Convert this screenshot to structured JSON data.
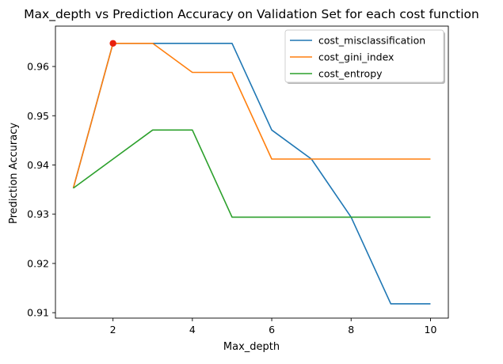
{
  "chart_data": {
    "type": "line",
    "title": "Max_depth vs Prediction Accuracy on Validation Set for each cost function",
    "xlabel": "Max_depth",
    "ylabel": "Prediction Accuracy",
    "x": [
      1,
      2,
      3,
      4,
      5,
      6,
      7,
      8,
      9,
      10
    ],
    "xlim": [
      0.55,
      10.45
    ],
    "ylim": [
      0.9089,
      0.9682
    ],
    "xticks": [
      2,
      4,
      6,
      8,
      10
    ],
    "xtick_labels": [
      "2",
      "4",
      "6",
      "8",
      "10"
    ],
    "yticks": [
      0.91,
      0.92,
      0.93,
      0.94,
      0.95,
      0.96
    ],
    "ytick_labels": [
      "0.91",
      "0.92",
      "0.93",
      "0.94",
      "0.95",
      "0.96"
    ],
    "grid": false,
    "legend_position": "top-right",
    "series": [
      {
        "name": "cost_misclassification",
        "color": "#1f77b4",
        "values": [
          0.9353,
          0.9647,
          0.9647,
          0.9647,
          0.9647,
          0.9471,
          0.9412,
          0.9294,
          0.9118,
          0.9118
        ]
      },
      {
        "name": "cost_gini_index",
        "color": "#ff7f0e",
        "values": [
          0.9353,
          0.9647,
          0.9647,
          0.9588,
          0.9588,
          0.9412,
          0.9412,
          0.9412,
          0.9412,
          0.9412
        ]
      },
      {
        "name": "cost_entropy",
        "color": "#2ca02c",
        "values": [
          0.9353,
          0.9412,
          0.9471,
          0.9471,
          0.9294,
          0.9294,
          0.9294,
          0.9294,
          0.9294,
          0.9294
        ]
      }
    ],
    "highlight_point": {
      "x": 2,
      "y": 0.9647,
      "color": "#e8200c"
    }
  }
}
